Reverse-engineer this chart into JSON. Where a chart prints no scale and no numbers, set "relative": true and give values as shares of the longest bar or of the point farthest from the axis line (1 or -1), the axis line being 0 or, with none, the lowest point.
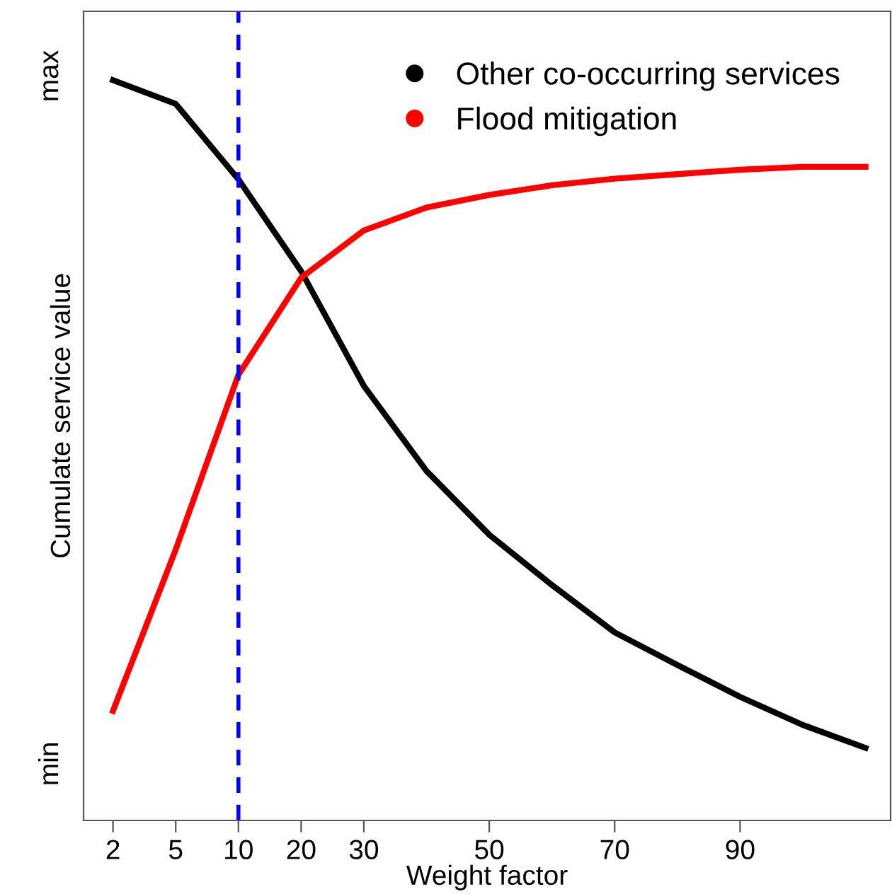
{
  "chart_data": {
    "type": "line",
    "xlabel": "Weight factor",
    "ylabel": "Cumulate service value",
    "relative": true,
    "categories": [
      "2",
      "5",
      "10",
      "20",
      "30",
      null,
      "50",
      null,
      "70",
      null,
      "90",
      null,
      null
    ],
    "series": [
      {
        "name": "Other co-occurring services",
        "color": "#000000",
        "values": [
          1.0,
          0.968,
          0.866,
          0.742,
          0.587,
          0.472,
          0.386,
          0.318,
          0.254,
          0.21,
          0.167,
          0.129,
          0.098
        ]
      },
      {
        "name": "Flood mitigation",
        "color": "#ff0000",
        "values": [
          0.148,
          0.366,
          0.602,
          0.733,
          0.797,
          0.828,
          0.845,
          0.858,
          0.867,
          0.873,
          0.879,
          0.883,
          0.883
        ]
      }
    ],
    "annotations": [
      "min",
      "max"
    ],
    "ref_lines": [
      {
        "axis": "x",
        "value": "10",
        "color": "#0000ff",
        "line_style": "dashed"
      }
    ],
    "legend": "top right",
    "marker": "none",
    "line_style": "solid",
    "grid": false
  }
}
